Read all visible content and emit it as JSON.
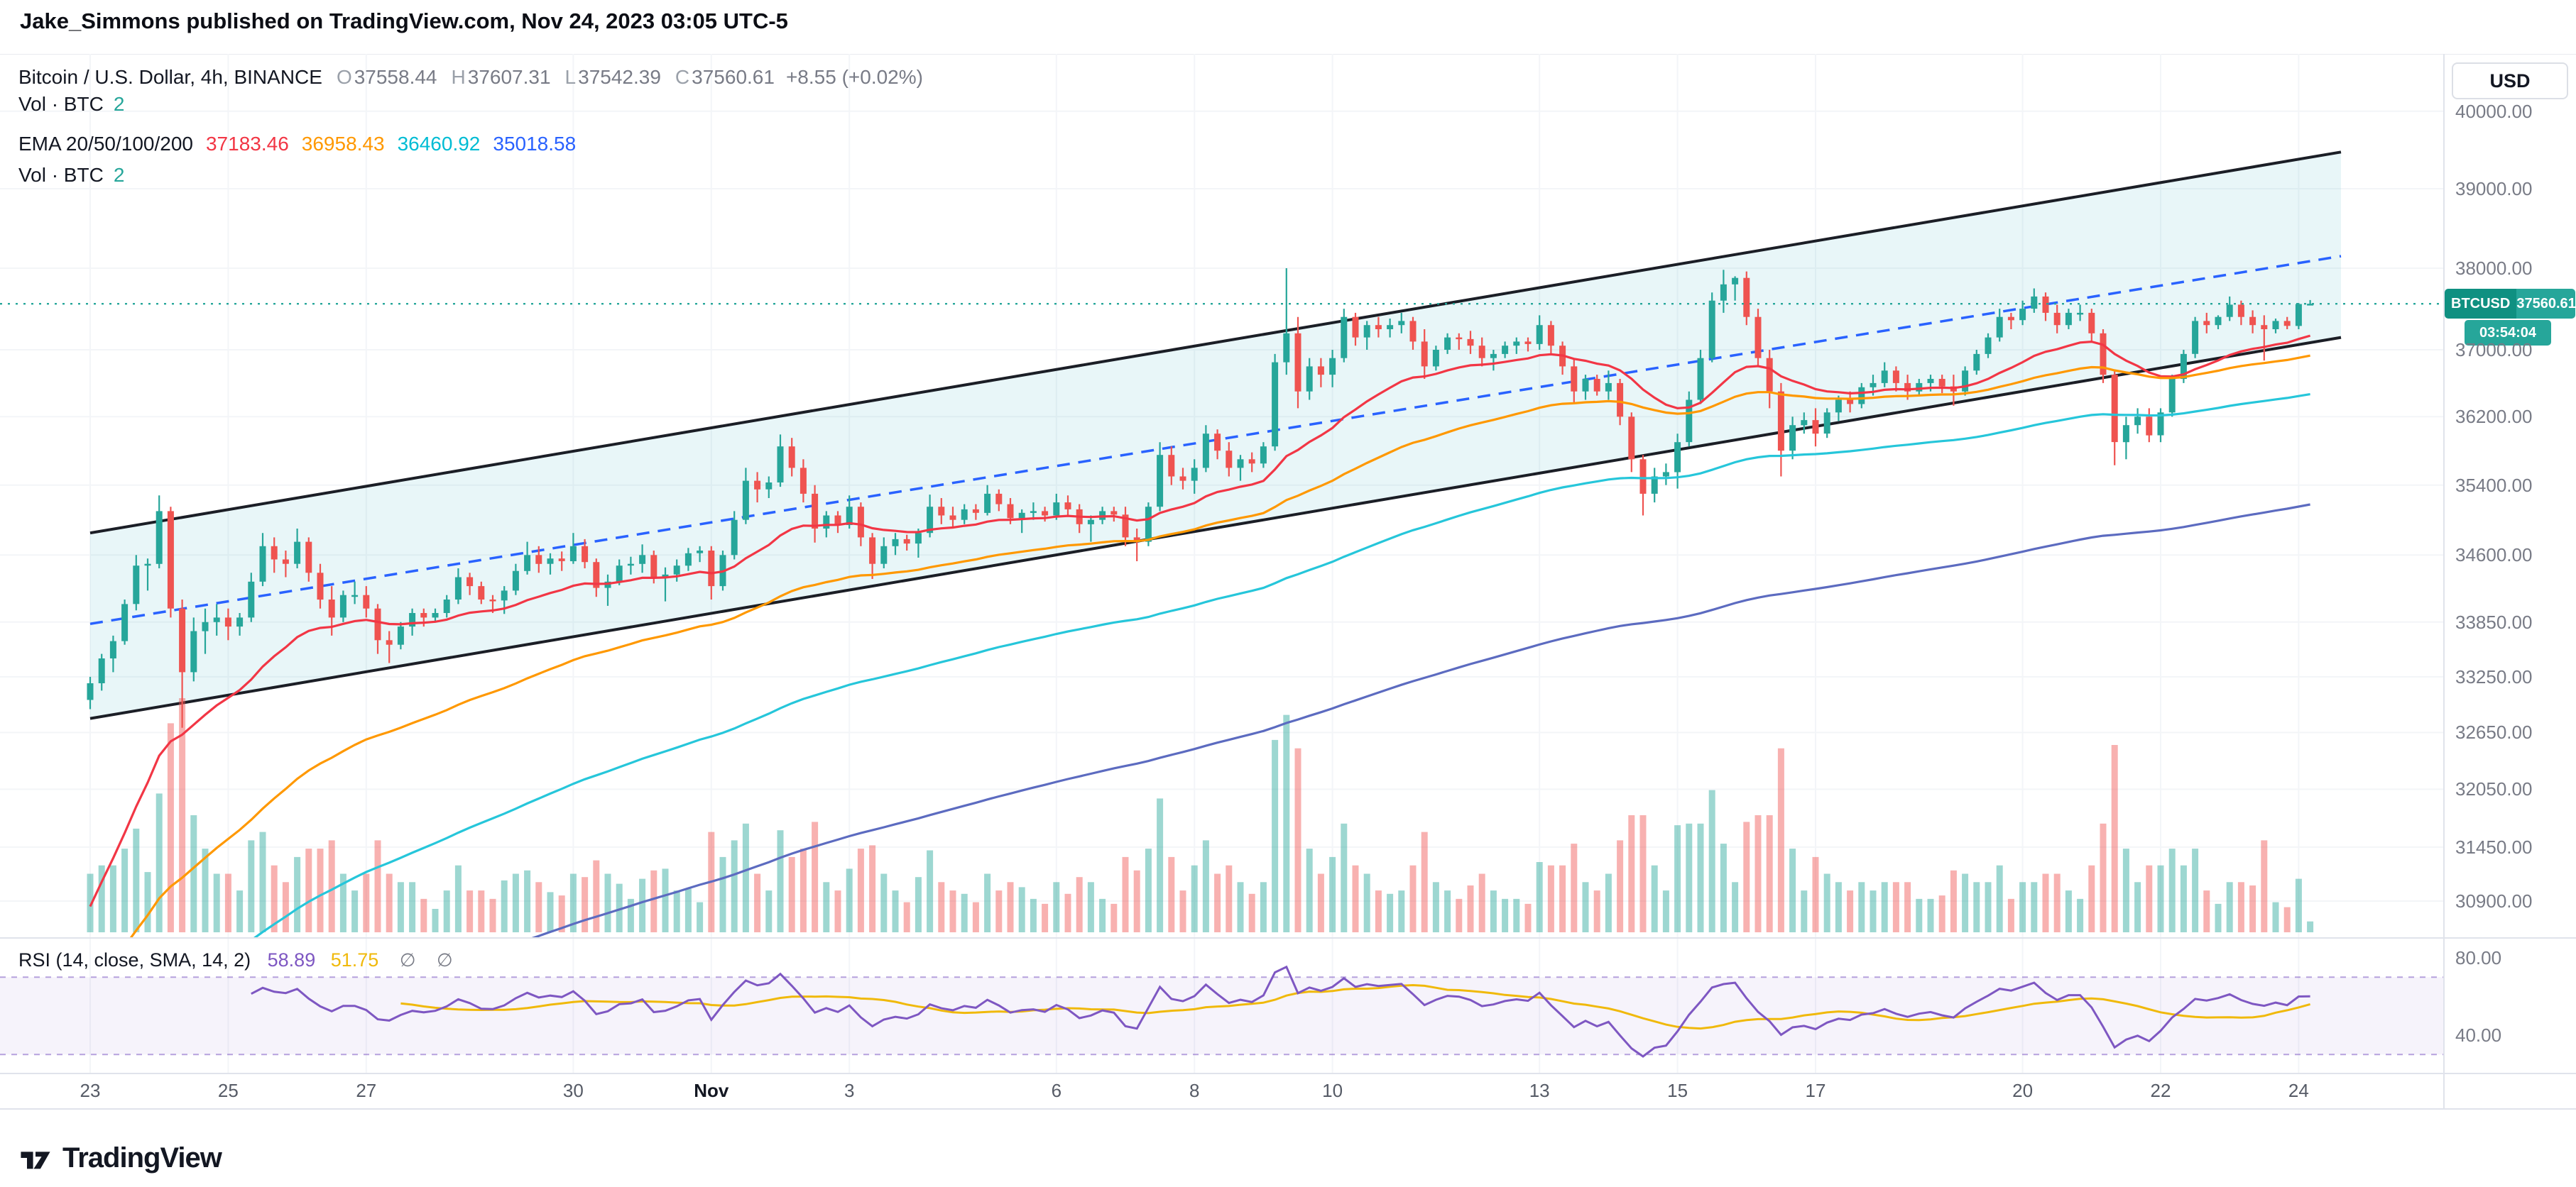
{
  "page": {
    "published_line": "Jake_Simmons published on TradingView.com, Nov 24, 2023 03:05 UTC-5",
    "brand": "TradingView"
  },
  "header": {
    "symbol_line": "Bitcoin / U.S. Dollar, 4h, BINANCE",
    "ohlc": [
      {
        "k": "O",
        "v": "37558.44"
      },
      {
        "k": "H",
        "v": "37607.31"
      },
      {
        "k": "L",
        "v": "37542.39"
      },
      {
        "k": "C",
        "v": "37560.61"
      }
    ],
    "change": "+8.55 (+0.02%)",
    "vol": {
      "label": "Vol · BTC",
      "value": "2"
    },
    "ema": {
      "label": "EMA 20/50/100/200",
      "values": [
        "37183.46",
        "36958.43",
        "36460.92",
        "35018.58"
      ]
    },
    "vol2": {
      "label": "Vol · BTC",
      "value": "2"
    }
  },
  "rsi_legend": {
    "label": "RSI (14, close, SMA, 14, 2)",
    "value": "58.89",
    "ma": "51.75",
    "empty1": "∅",
    "empty2": "∅"
  },
  "axis": {
    "currency": "USD",
    "badge": {
      "symbol": "BTCUSD",
      "price": "37560.61",
      "countdown": "03:54:04"
    }
  },
  "chart_data": {
    "type": "candlestick",
    "title": "Bitcoin / U.S. Dollar, 4h, BINANCE",
    "x_range": {
      "start": "Oct 23, 2023",
      "end": "Nov 24, 2023",
      "interval": "4h"
    },
    "y_axis": {
      "scale": "log",
      "ticks": [
        40000,
        39000,
        38000,
        37000,
        36200,
        35400,
        34600,
        33850,
        33250,
        32650,
        32050,
        31450,
        30900
      ]
    },
    "x_axis": {
      "ticks": [
        {
          "label": "23",
          "d": 0
        },
        {
          "label": "25",
          "d": 2
        },
        {
          "label": "27",
          "d": 4
        },
        {
          "label": "30",
          "d": 7
        },
        {
          "label": "Nov",
          "d": 9,
          "major": true
        },
        {
          "label": "3",
          "d": 11
        },
        {
          "label": "6",
          "d": 14
        },
        {
          "label": "8",
          "d": 16
        },
        {
          "label": "10",
          "d": 18
        },
        {
          "label": "13",
          "d": 21
        },
        {
          "label": "15",
          "d": 23
        },
        {
          "label": "17",
          "d": 25
        },
        {
          "label": "20",
          "d": 28
        },
        {
          "label": "22",
          "d": 30
        },
        {
          "label": "24",
          "d": 32
        }
      ]
    },
    "last_price": 37560.61,
    "ohlc_current": {
      "open": 37558.44,
      "high": 37607.31,
      "low": 37542.39,
      "close": 37560.61,
      "change_abs": 8.55,
      "change_pct": 0.02
    },
    "ema": {
      "periods": [
        20,
        50,
        100,
        200
      ],
      "values": [
        37183.46,
        36958.43,
        36460.92,
        35018.58
      ]
    },
    "rsi": {
      "period": 14,
      "ma_period": 14,
      "value": 58.89,
      "ma_value": 51.75,
      "bands": [
        70,
        30
      ],
      "axis_ticks": [
        80,
        40
      ]
    },
    "channel": {
      "upper": [
        34850,
        39470
      ],
      "lower": [
        32800,
        37150
      ],
      "trendline": [
        33830,
        38150
      ]
    },
    "colors": {
      "up": "#26a69a",
      "down": "#ef5350",
      "ema": [
        "#f23645",
        "#ff9800",
        "#26c6da",
        "#5c6bc0"
      ],
      "trendline": "#2962ff",
      "channel_fill": "rgba(34,171,190,0.10)",
      "channel_line": "#1b1e26",
      "rsi": "#7e57c2",
      "rsi_ma": "#f0b90b",
      "last_price": "#26a69a"
    },
    "candles": [
      [
        33000,
        33250,
        32900,
        33180
      ],
      [
        33180,
        33500,
        33100,
        33450
      ],
      [
        33450,
        33700,
        33300,
        33640
      ],
      [
        33640,
        34100,
        33600,
        34050
      ],
      [
        34050,
        34600,
        33980,
        34480
      ],
      [
        34480,
        34560,
        34200,
        34500
      ],
      [
        34500,
        35280,
        34450,
        35100
      ],
      [
        35100,
        35150,
        33900,
        34000
      ],
      [
        34000,
        34100,
        32700,
        33300
      ],
      [
        33300,
        33900,
        33200,
        33750
      ],
      [
        33750,
        34000,
        33500,
        33850
      ],
      [
        33850,
        34050,
        33700,
        33900
      ],
      [
        33900,
        34000,
        33650,
        33800
      ],
      [
        33800,
        33950,
        33700,
        33900
      ],
      [
        33900,
        34400,
        33850,
        34300
      ],
      [
        34300,
        34850,
        34250,
        34700
      ],
      [
        34700,
        34800,
        34400,
        34550
      ],
      [
        34550,
        34650,
        34350,
        34500
      ],
      [
        34500,
        34900,
        34450,
        34750
      ],
      [
        34750,
        34800,
        34300,
        34400
      ],
      [
        34400,
        34500,
        34000,
        34100
      ],
      [
        34100,
        34250,
        33700,
        33900
      ],
      [
        33900,
        34200,
        33850,
        34150
      ],
      [
        34150,
        34300,
        34050,
        34150
      ],
      [
        34150,
        34250,
        33900,
        34000
      ],
      [
        34000,
        34050,
        33500,
        33650
      ],
      [
        33650,
        33750,
        33400,
        33600
      ],
      [
        33600,
        33850,
        33550,
        33800
      ],
      [
        33800,
        34000,
        33700,
        33950
      ],
      [
        33950,
        34000,
        33800,
        33900
      ],
      [
        33900,
        34000,
        33860,
        33950
      ],
      [
        33950,
        34150,
        33900,
        34100
      ],
      [
        34100,
        34450,
        34050,
        34350
      ],
      [
        34350,
        34400,
        34150,
        34250
      ],
      [
        34250,
        34300,
        34050,
        34100
      ],
      [
        34100,
        34150,
        33950,
        34090
      ],
      [
        34090,
        34250,
        33940,
        34200
      ],
      [
        34200,
        34500,
        34150,
        34420
      ],
      [
        34420,
        34750,
        34380,
        34600
      ],
      [
        34600,
        34700,
        34400,
        34500
      ],
      [
        34500,
        34620,
        34380,
        34560
      ],
      [
        34560,
        34640,
        34420,
        34530
      ],
      [
        34530,
        34850,
        34500,
        34700
      ],
      [
        34700,
        34780,
        34450,
        34520
      ],
      [
        34520,
        34560,
        34130,
        34230
      ],
      [
        34230,
        34380,
        34030,
        34300
      ],
      [
        34300,
        34550,
        34260,
        34480
      ],
      [
        34480,
        34580,
        34380,
        34500
      ],
      [
        34500,
        34720,
        34400,
        34600
      ],
      [
        34600,
        34650,
        34280,
        34350
      ],
      [
        34350,
        34460,
        34080,
        34380
      ],
      [
        34380,
        34550,
        34300,
        34480
      ],
      [
        34480,
        34680,
        34420,
        34620
      ],
      [
        34620,
        34700,
        34520,
        34650
      ],
      [
        34650,
        34700,
        34100,
        34250
      ],
      [
        34250,
        34650,
        34200,
        34600
      ],
      [
        34600,
        35100,
        34550,
        35000
      ],
      [
        35000,
        35600,
        34950,
        35450
      ],
      [
        35450,
        35550,
        35200,
        35350
      ],
      [
        35350,
        35500,
        35250,
        35430
      ],
      [
        35430,
        35990,
        35380,
        35850
      ],
      [
        35850,
        35950,
        35500,
        35600
      ],
      [
        35600,
        35700,
        35200,
        35300
      ],
      [
        35300,
        35400,
        34740,
        34900
      ],
      [
        34900,
        35100,
        34800,
        35050
      ],
      [
        35050,
        35100,
        34850,
        34940
      ],
      [
        34940,
        35280,
        34900,
        35150
      ],
      [
        35150,
        35200,
        34700,
        34800
      ],
      [
        34800,
        34850,
        34330,
        34500
      ],
      [
        34500,
        34800,
        34450,
        34700
      ],
      [
        34700,
        34850,
        34600,
        34780
      ],
      [
        34780,
        34830,
        34650,
        34730
      ],
      [
        34730,
        34900,
        34570,
        34850
      ],
      [
        34850,
        35290,
        34800,
        35150
      ],
      [
        35150,
        35250,
        34950,
        35050
      ],
      [
        35050,
        35150,
        34900,
        35000
      ],
      [
        35000,
        35180,
        34950,
        35120
      ],
      [
        35120,
        35180,
        35000,
        35080
      ],
      [
        35080,
        35400,
        35050,
        35300
      ],
      [
        35300,
        35350,
        35100,
        35180
      ],
      [
        35180,
        35250,
        34950,
        35020
      ],
      [
        35020,
        35120,
        34850,
        35080
      ],
      [
        35080,
        35200,
        35000,
        35100
      ],
      [
        35100,
        35150,
        34980,
        35050
      ],
      [
        35050,
        35300,
        35000,
        35200
      ],
      [
        35200,
        35280,
        35050,
        35120
      ],
      [
        35120,
        35180,
        34850,
        34950
      ],
      [
        34950,
        35050,
        34750,
        35000
      ],
      [
        35000,
        35150,
        34950,
        35100
      ],
      [
        35100,
        35150,
        34980,
        35060
      ],
      [
        35060,
        35150,
        34700,
        34800
      ],
      [
        34800,
        34900,
        34530,
        34750
      ],
      [
        34750,
        35200,
        34700,
        35150
      ],
      [
        35150,
        35900,
        35100,
        35750
      ],
      [
        35750,
        35850,
        35400,
        35500
      ],
      [
        35500,
        35600,
        35350,
        35450
      ],
      [
        35450,
        35700,
        35300,
        35600
      ],
      [
        35600,
        36100,
        35550,
        36000
      ],
      [
        36000,
        36050,
        35700,
        35800
      ],
      [
        35800,
        35900,
        35500,
        35600
      ],
      [
        35600,
        35750,
        35450,
        35700
      ],
      [
        35700,
        35780,
        35550,
        35650
      ],
      [
        35650,
        35900,
        35600,
        35850
      ],
      [
        35850,
        36950,
        35800,
        36850
      ],
      [
        36850,
        38000,
        36700,
        37200
      ],
      [
        37200,
        37400,
        36300,
        36500
      ],
      [
        36500,
        36900,
        36400,
        36800
      ],
      [
        36800,
        36900,
        36550,
        36700
      ],
      [
        36700,
        37000,
        36550,
        36900
      ],
      [
        36900,
        37500,
        36850,
        37400
      ],
      [
        37400,
        37450,
        37050,
        37150
      ],
      [
        37150,
        37350,
        37000,
        37300
      ],
      [
        37300,
        37400,
        37150,
        37250
      ],
      [
        37250,
        37380,
        37150,
        37300
      ],
      [
        37300,
        37450,
        37200,
        37350
      ],
      [
        37350,
        37400,
        37000,
        37100
      ],
      [
        37100,
        37250,
        36650,
        36800
      ],
      [
        36800,
        37050,
        36750,
        37000
      ],
      [
        37000,
        37200,
        36950,
        37150
      ],
      [
        37150,
        37200,
        37000,
        37130
      ],
      [
        37130,
        37230,
        36950,
        37050
      ],
      [
        37050,
        37150,
        36800,
        36900
      ],
      [
        36900,
        37000,
        36750,
        36950
      ],
      [
        36950,
        37100,
        36900,
        37050
      ],
      [
        37050,
        37150,
        36950,
        37100
      ],
      [
        37100,
        37150,
        36980,
        37070
      ],
      [
        37070,
        37420,
        37000,
        37300
      ],
      [
        37300,
        37350,
        36950,
        37050
      ],
      [
        37050,
        37100,
        36700,
        36800
      ],
      [
        36800,
        36900,
        36370,
        36500
      ],
      [
        36500,
        36700,
        36400,
        36650
      ],
      [
        36650,
        36700,
        36450,
        36500
      ],
      [
        36500,
        36750,
        36400,
        36600
      ],
      [
        36600,
        36650,
        36100,
        36200
      ],
      [
        36200,
        36250,
        35550,
        35700
      ],
      [
        35700,
        35750,
        35050,
        35300
      ],
      [
        35300,
        35600,
        35200,
        35500
      ],
      [
        35500,
        35650,
        35400,
        35550
      ],
      [
        35550,
        36000,
        35360,
        35900
      ],
      [
        35900,
        36500,
        35850,
        36400
      ],
      [
        36400,
        37000,
        36350,
        36900
      ],
      [
        36900,
        37700,
        36850,
        37600
      ],
      [
        37600,
        37980,
        37450,
        37800
      ],
      [
        37800,
        37900,
        37600,
        37880
      ],
      [
        37880,
        37960,
        37300,
        37400
      ],
      [
        37400,
        37500,
        36800,
        36900
      ],
      [
        36900,
        37000,
        36300,
        36500
      ],
      [
        36500,
        36600,
        35500,
        35800
      ],
      [
        35800,
        36200,
        35700,
        36100
      ],
      [
        36100,
        36250,
        36000,
        36160
      ],
      [
        36160,
        36300,
        35850,
        36000
      ],
      [
        36000,
        36300,
        35950,
        36250
      ],
      [
        36250,
        36450,
        36150,
        36400
      ],
      [
        36400,
        36500,
        36250,
        36350
      ],
      [
        36350,
        36600,
        36300,
        36550
      ],
      [
        36550,
        36700,
        36450,
        36600
      ],
      [
        36600,
        36850,
        36550,
        36750
      ],
      [
        36750,
        36800,
        36500,
        36600
      ],
      [
        36600,
        36700,
        36400,
        36500
      ],
      [
        36500,
        36650,
        36450,
        36600
      ],
      [
        36600,
        36700,
        36500,
        36650
      ],
      [
        36650,
        36700,
        36480,
        36560
      ],
      [
        36560,
        36700,
        36330,
        36500
      ],
      [
        36500,
        36800,
        36450,
        36750
      ],
      [
        36750,
        37000,
        36700,
        36950
      ],
      [
        36950,
        37200,
        36900,
        37150
      ],
      [
        37150,
        37500,
        37100,
        37400
      ],
      [
        37400,
        37450,
        37250,
        37360
      ],
      [
        37360,
        37600,
        37300,
        37500
      ],
      [
        37500,
        37750,
        37450,
        37650
      ],
      [
        37650,
        37700,
        37350,
        37450
      ],
      [
        37450,
        37550,
        37200,
        37300
      ],
      [
        37300,
        37500,
        37250,
        37450
      ],
      [
        37450,
        37550,
        37350,
        37450
      ],
      [
        37450,
        37500,
        37100,
        37200
      ],
      [
        37200,
        37250,
        36600,
        36700
      ],
      [
        36700,
        36750,
        35630,
        35900
      ],
      [
        35900,
        36200,
        35700,
        36100
      ],
      [
        36100,
        36300,
        36000,
        36200
      ],
      [
        36200,
        36300,
        35900,
        35980
      ],
      [
        35980,
        36300,
        35900,
        36250
      ],
      [
        36250,
        36700,
        36200,
        36650
      ],
      [
        36650,
        37000,
        36600,
        36950
      ],
      [
        36950,
        37400,
        36900,
        37350
      ],
      [
        37350,
        37450,
        37200,
        37300
      ],
      [
        37300,
        37420,
        37250,
        37400
      ],
      [
        37400,
        37650,
        37350,
        37550
      ],
      [
        37550,
        37600,
        37300,
        37400
      ],
      [
        37400,
        37480,
        37200,
        37300
      ],
      [
        37300,
        37420,
        36870,
        37250
      ],
      [
        37250,
        37380,
        37200,
        37350
      ],
      [
        37350,
        37400,
        37250,
        37290
      ],
      [
        37290,
        37570,
        37250,
        37558
      ],
      [
        37558,
        37607,
        37542,
        37561
      ]
    ]
  }
}
